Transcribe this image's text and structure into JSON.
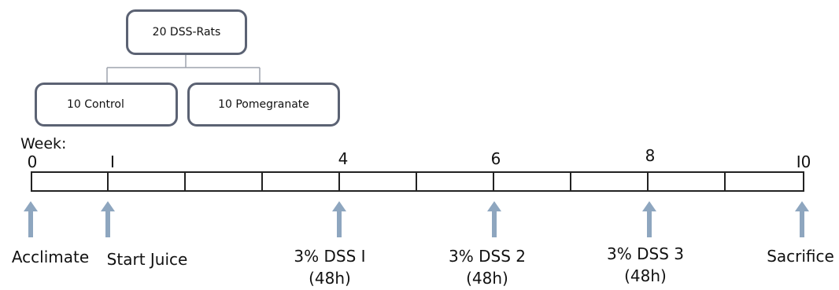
{
  "tree": {
    "root": "20 DSS-Rats",
    "children": [
      "10 Control",
      "10 Pomegranate"
    ]
  },
  "timeline": {
    "week_label": "Week:",
    "tick_labels": [
      {
        "id": "tick-0",
        "text": "0"
      },
      {
        "id": "tick-1",
        "text": "I"
      },
      {
        "id": "tick-4",
        "text": "4"
      },
      {
        "id": "tick-6",
        "text": "6"
      },
      {
        "id": "tick-8",
        "text": "8"
      },
      {
        "id": "tick-10",
        "text": "I0"
      }
    ],
    "events": [
      {
        "id": "acclimate",
        "line1": "Acclimate",
        "line2": ""
      },
      {
        "id": "start-juice",
        "line1": "Start Juice",
        "line2": ""
      },
      {
        "id": "dss-1",
        "line1": "3% DSS I",
        "line2": "(48h)"
      },
      {
        "id": "dss-2",
        "line1": "3% DSS 2",
        "line2": "(48h)"
      },
      {
        "id": "dss-3",
        "line1": "3% DSS 3",
        "line2": "(48h)"
      },
      {
        "id": "sacrifice",
        "line1": "Sacrifice",
        "line2": ""
      }
    ]
  },
  "colors": {
    "box_border": "#5b6273",
    "connector": "#9ea3ad",
    "arrow": "#8ea6bf",
    "timeline_border": "#222222"
  }
}
